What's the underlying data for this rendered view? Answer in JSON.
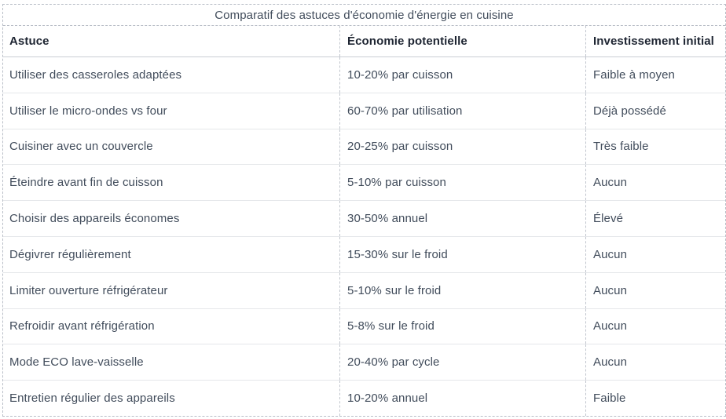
{
  "chart_data": {
    "type": "table",
    "title": "Comparatif des astuces d'économie d'énergie en cuisine",
    "columns": [
      "Astuce",
      "Économie potentielle",
      "Investissement initial"
    ],
    "rows": [
      [
        "Utiliser des casseroles adaptées",
        "10-20% par cuisson",
        "Faible à moyen"
      ],
      [
        "Utiliser le micro-ondes vs four",
        "60-70% par utilisation",
        "Déjà possédé"
      ],
      [
        "Cuisiner avec un couvercle",
        "20-25% par cuisson",
        "Très faible"
      ],
      [
        "Éteindre avant fin de cuisson",
        "5-10% par cuisson",
        "Aucun"
      ],
      [
        "Choisir des appareils économes",
        "30-50% annuel",
        "Élevé"
      ],
      [
        "Dégivrer régulièrement",
        "15-30% sur le froid",
        "Aucun"
      ],
      [
        "Limiter ouverture réfrigérateur",
        "5-10% sur le froid",
        "Aucun"
      ],
      [
        "Refroidir avant réfrigération",
        "5-8% sur le froid",
        "Aucun"
      ],
      [
        "Mode ECO lave-vaisselle",
        "20-40% par cycle",
        "Aucun"
      ],
      [
        "Entretien régulier des appareils",
        "10-20% annuel",
        "Faible"
      ]
    ],
    "colors": {
      "outer_border": "#b9bec7",
      "header_rule": "#c9cdd4",
      "row_rule": "#e5e7ea",
      "header_text": "#1e2532",
      "body_text": "#414c5b"
    }
  }
}
